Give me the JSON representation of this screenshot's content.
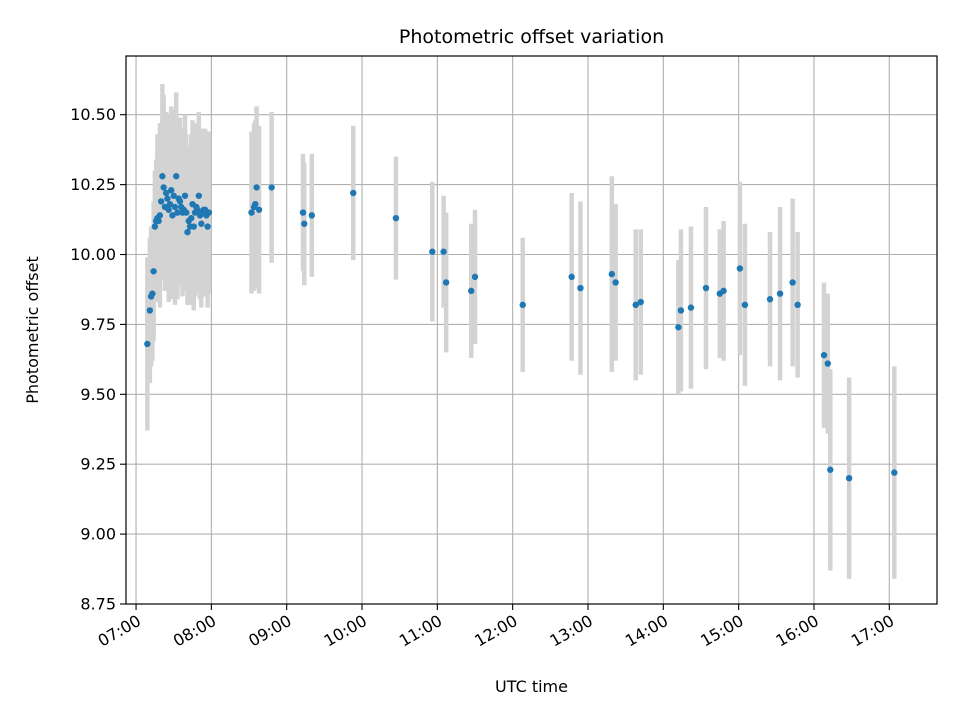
{
  "chart_data": {
    "type": "scatter",
    "title": "Photometric offset variation",
    "xlabel": "UTC time",
    "ylabel": "Photometric offset",
    "xlim": [
      "06:52",
      "17:38"
    ],
    "ylim": [
      8.75,
      10.71
    ],
    "grid": true,
    "x_ticks": [
      "07:00",
      "08:00",
      "09:00",
      "10:00",
      "11:00",
      "12:00",
      "13:00",
      "14:00",
      "15:00",
      "16:00",
      "17:00"
    ],
    "y_ticks": [
      "8.75",
      "9.00",
      "9.25",
      "9.50",
      "9.75",
      "10.00",
      "10.25",
      "10.50"
    ],
    "marker_color": "#1f77b4",
    "errorbar_color": "#d3d3d3",
    "series": [
      {
        "points": [
          {
            "t": "07:09",
            "y": 9.68,
            "e": 0.31
          },
          {
            "t": "07:11",
            "y": 9.8,
            "e": 0.26
          },
          {
            "t": "07:12",
            "y": 9.85,
            "e": 0.25
          },
          {
            "t": "07:13",
            "y": 9.86,
            "e": 0.24
          },
          {
            "t": "07:14",
            "y": 9.94,
            "e": 0.25
          },
          {
            "t": "07:15",
            "y": 10.1,
            "e": 0.2
          },
          {
            "t": "07:16",
            "y": 10.12,
            "e": 0.22
          },
          {
            "t": "07:17",
            "y": 10.13,
            "e": 0.3
          },
          {
            "t": "07:18",
            "y": 10.12,
            "e": 0.28
          },
          {
            "t": "07:19",
            "y": 10.14,
            "e": 0.33
          },
          {
            "t": "07:20",
            "y": 10.19,
            "e": 0.26
          },
          {
            "t": "07:21",
            "y": 10.28,
            "e": 0.33
          },
          {
            "t": "07:22",
            "y": 10.24,
            "e": 0.33
          },
          {
            "t": "07:23",
            "y": 10.17,
            "e": 0.3
          },
          {
            "t": "07:24",
            "y": 10.22,
            "e": 0.29
          },
          {
            "t": "07:25",
            "y": 10.2,
            "e": 0.3
          },
          {
            "t": "07:26",
            "y": 10.16,
            "e": 0.33
          },
          {
            "t": "07:27",
            "y": 10.18,
            "e": 0.32
          },
          {
            "t": "07:28",
            "y": 10.23,
            "e": 0.3
          },
          {
            "t": "07:29",
            "y": 10.14,
            "e": 0.3
          },
          {
            "t": "07:30",
            "y": 10.21,
            "e": 0.3
          },
          {
            "t": "07:31",
            "y": 10.17,
            "e": 0.35
          },
          {
            "t": "07:32",
            "y": 10.28,
            "e": 0.3
          },
          {
            "t": "07:33",
            "y": 10.15,
            "e": 0.31
          },
          {
            "t": "07:34",
            "y": 10.2,
            "e": 0.29
          },
          {
            "t": "07:35",
            "y": 10.19,
            "e": 0.3
          },
          {
            "t": "07:36",
            "y": 10.17,
            "e": 0.28
          },
          {
            "t": "07:37",
            "y": 10.15,
            "e": 0.3
          },
          {
            "t": "07:38",
            "y": 10.16,
            "e": 0.28
          },
          {
            "t": "07:39",
            "y": 10.21,
            "e": 0.29
          },
          {
            "t": "07:40",
            "y": 10.15,
            "e": 0.28
          },
          {
            "t": "07:41",
            "y": 10.08,
            "e": 0.26
          },
          {
            "t": "07:42",
            "y": 10.12,
            "e": 0.27
          },
          {
            "t": "07:43",
            "y": 10.1,
            "e": 0.28
          },
          {
            "t": "07:44",
            "y": 10.13,
            "e": 0.3
          },
          {
            "t": "07:45",
            "y": 10.18,
            "e": 0.3
          },
          {
            "t": "07:46",
            "y": 10.1,
            "e": 0.3
          },
          {
            "t": "07:47",
            "y": 10.15,
            "e": 0.3
          },
          {
            "t": "07:48",
            "y": 10.17,
            "e": 0.3
          },
          {
            "t": "07:49",
            "y": 10.16,
            "e": 0.3
          },
          {
            "t": "07:50",
            "y": 10.21,
            "e": 0.3
          },
          {
            "t": "07:51",
            "y": 10.14,
            "e": 0.3
          },
          {
            "t": "07:52",
            "y": 10.11,
            "e": 0.3
          },
          {
            "t": "07:53",
            "y": 10.15,
            "e": 0.3
          },
          {
            "t": "07:54",
            "y": 10.16,
            "e": 0.29
          },
          {
            "t": "07:55",
            "y": 10.16,
            "e": 0.29
          },
          {
            "t": "07:56",
            "y": 10.14,
            "e": 0.29
          },
          {
            "t": "07:57",
            "y": 10.1,
            "e": 0.29
          },
          {
            "t": "07:58",
            "y": 10.15,
            "e": 0.29
          },
          {
            "t": "08:32",
            "y": 10.15,
            "e": 0.29
          },
          {
            "t": "08:34",
            "y": 10.17,
            "e": 0.3
          },
          {
            "t": "08:35",
            "y": 10.18,
            "e": 0.3
          },
          {
            "t": "08:36",
            "y": 10.24,
            "e": 0.29
          },
          {
            "t": "08:38",
            "y": 10.16,
            "e": 0.3
          },
          {
            "t": "08:48",
            "y": 10.24,
            "e": 0.27
          },
          {
            "t": "09:13",
            "y": 10.15,
            "e": 0.21
          },
          {
            "t": "09:14",
            "y": 10.11,
            "e": 0.22
          },
          {
            "t": "09:20",
            "y": 10.14,
            "e": 0.22
          },
          {
            "t": "09:53",
            "y": 10.22,
            "e": 0.24
          },
          {
            "t": "10:27",
            "y": 10.13,
            "e": 0.22
          },
          {
            "t": "10:56",
            "y": 10.01,
            "e": 0.25
          },
          {
            "t": "11:05",
            "y": 10.01,
            "e": 0.2
          },
          {
            "t": "11:07",
            "y": 9.9,
            "e": 0.25
          },
          {
            "t": "11:27",
            "y": 9.87,
            "e": 0.24
          },
          {
            "t": "11:30",
            "y": 9.92,
            "e": 0.24
          },
          {
            "t": "12:08",
            "y": 9.82,
            "e": 0.24
          },
          {
            "t": "12:47",
            "y": 9.92,
            "e": 0.3
          },
          {
            "t": "12:54",
            "y": 9.88,
            "e": 0.31
          },
          {
            "t": "13:19",
            "y": 9.93,
            "e": 0.35
          },
          {
            "t": "13:22",
            "y": 9.9,
            "e": 0.28
          },
          {
            "t": "13:38",
            "y": 9.82,
            "e": 0.27
          },
          {
            "t": "13:42",
            "y": 9.83,
            "e": 0.26
          },
          {
            "t": "14:12",
            "y": 9.74,
            "e": 0.24
          },
          {
            "t": "14:14",
            "y": 9.8,
            "e": 0.29
          },
          {
            "t": "14:22",
            "y": 9.81,
            "e": 0.29
          },
          {
            "t": "14:34",
            "y": 9.88,
            "e": 0.29
          },
          {
            "t": "14:45",
            "y": 9.86,
            "e": 0.23
          },
          {
            "t": "14:48",
            "y": 9.87,
            "e": 0.25
          },
          {
            "t": "15:01",
            "y": 9.95,
            "e": 0.31
          },
          {
            "t": "15:05",
            "y": 9.82,
            "e": 0.29
          },
          {
            "t": "15:25",
            "y": 9.84,
            "e": 0.24
          },
          {
            "t": "15:33",
            "y": 9.86,
            "e": 0.31
          },
          {
            "t": "15:43",
            "y": 9.9,
            "e": 0.3
          },
          {
            "t": "15:47",
            "y": 9.82,
            "e": 0.26
          },
          {
            "t": "16:08",
            "y": 9.64,
            "e": 0.26
          },
          {
            "t": "16:11",
            "y": 9.61,
            "e": 0.25
          },
          {
            "t": "16:13",
            "y": 9.23,
            "e": 0.36
          },
          {
            "t": "16:28",
            "y": 9.2,
            "e": 0.36
          },
          {
            "t": "17:04",
            "y": 9.22,
            "e": 0.38
          }
        ]
      }
    ]
  }
}
